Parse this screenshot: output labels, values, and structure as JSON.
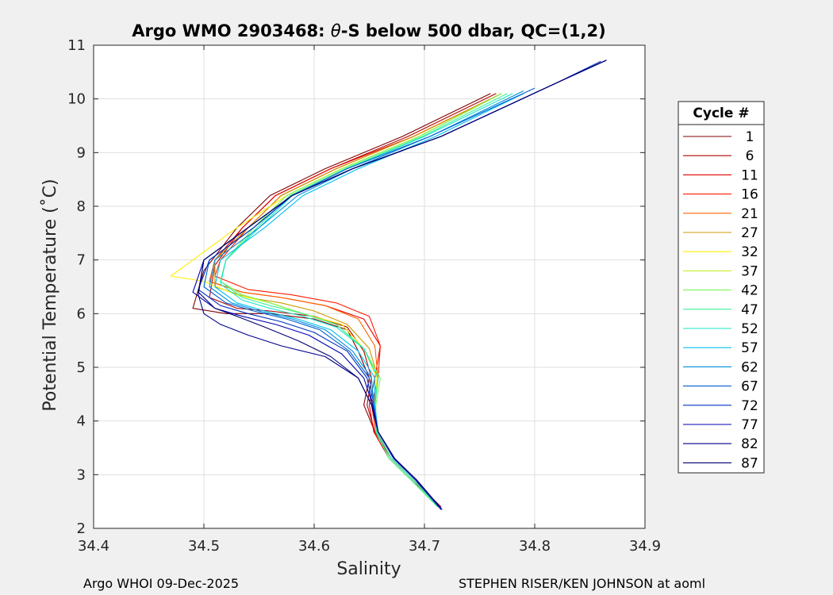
{
  "chart_data": {
    "type": "line",
    "title_prefix": "Argo WMO 2903468: ",
    "title_symbol": "θ",
    "title_suffix": "-S below 500 dbar,  QC=(1,2)",
    "xlabel": "Salinity",
    "ylabel": "Potential Temperature (˚C)",
    "xlim": [
      34.4,
      34.9
    ],
    "ylim": [
      2,
      11
    ],
    "xticks": [
      34.4,
      34.5,
      34.6,
      34.7,
      34.8,
      34.9
    ],
    "xtick_labels": [
      "34.4",
      "34.5",
      "34.6",
      "34.7",
      "34.8",
      "34.9"
    ],
    "yticks": [
      2,
      3,
      4,
      5,
      6,
      7,
      8,
      9,
      10,
      11
    ],
    "ytick_labels": [
      "2",
      "3",
      "4",
      "5",
      "6",
      "7",
      "8",
      "9",
      "10",
      "11"
    ],
    "grid": true,
    "legend_position": "right",
    "legend_title": "Cycle #",
    "legend_entries": [
      "1",
      "6",
      "11",
      "16",
      "21",
      "27",
      "32",
      "37",
      "42",
      "47",
      "52",
      "57",
      "62",
      "67",
      "72",
      "77",
      "82",
      "87"
    ],
    "legend_colors": [
      "#800000",
      "#b30000",
      "#e60000",
      "#ff1a00",
      "#ff6600",
      "#cc9900",
      "#ffee00",
      "#c8f028",
      "#7df55a",
      "#3cf096",
      "#19e6c8",
      "#00c0f0",
      "#0090e0",
      "#0060d0",
      "#0030c0",
      "#0000b0",
      "#000090",
      "#000070"
    ],
    "series": [
      {
        "name": "1",
        "color": "#800000",
        "S": [
          34.715,
          34.69,
          34.67,
          34.655,
          34.645,
          34.65,
          34.64,
          34.63,
          34.6,
          34.56,
          34.52,
          34.49,
          34.5,
          34.53,
          34.56,
          34.61,
          34.68,
          34.76
        ],
        "T": [
          2.4,
          2.9,
          3.3,
          3.8,
          4.3,
          4.8,
          5.3,
          5.7,
          5.9,
          6.0,
          6.0,
          6.1,
          6.8,
          7.6,
          8.2,
          8.7,
          9.3,
          10.1
        ]
      },
      {
        "name": "6",
        "color": "#b30000",
        "S": [
          34.715,
          34.69,
          34.67,
          34.655,
          34.648,
          34.652,
          34.645,
          34.63,
          34.6,
          34.56,
          34.53,
          34.505,
          34.51,
          34.535,
          34.565,
          34.615,
          34.685,
          34.765
        ],
        "T": [
          2.4,
          2.9,
          3.3,
          3.8,
          4.3,
          4.8,
          5.3,
          5.75,
          5.95,
          6.05,
          6.1,
          6.3,
          6.9,
          7.6,
          8.2,
          8.7,
          9.3,
          10.1
        ]
      },
      {
        "name": "11",
        "color": "#e60000",
        "S": [
          34.715,
          34.688,
          34.668,
          34.654,
          34.65,
          34.655,
          34.66,
          34.645,
          34.61,
          34.57,
          34.535,
          34.505,
          34.51,
          34.535,
          34.565,
          34.615,
          34.69,
          34.77
        ],
        "T": [
          2.4,
          2.9,
          3.3,
          3.8,
          4.3,
          4.8,
          5.4,
          5.9,
          6.15,
          6.3,
          6.4,
          6.6,
          7.0,
          7.6,
          8.2,
          8.7,
          9.3,
          10.1
        ]
      },
      {
        "name": "16",
        "color": "#ff1a00",
        "S": [
          34.714,
          34.69,
          34.67,
          34.656,
          34.652,
          34.658,
          34.66,
          34.65,
          34.62,
          34.58,
          34.54,
          34.51,
          34.515,
          34.54,
          34.57,
          34.62,
          34.69,
          34.77
        ],
        "T": [
          2.4,
          2.9,
          3.3,
          3.8,
          4.3,
          4.8,
          5.4,
          5.95,
          6.2,
          6.35,
          6.45,
          6.7,
          7.0,
          7.6,
          8.2,
          8.7,
          9.3,
          10.1
        ]
      },
      {
        "name": "21",
        "color": "#ff6600",
        "S": [
          34.714,
          34.69,
          34.67,
          34.657,
          34.653,
          34.658,
          34.655,
          34.64,
          34.61,
          34.57,
          34.535,
          34.505,
          34.51,
          34.54,
          34.57,
          34.62,
          34.69,
          34.77
        ],
        "T": [
          2.4,
          2.9,
          3.3,
          3.8,
          4.3,
          4.8,
          5.4,
          5.9,
          6.15,
          6.3,
          6.4,
          6.6,
          7.0,
          7.6,
          8.2,
          8.7,
          9.3,
          10.1
        ]
      },
      {
        "name": "27",
        "color": "#cc9900",
        "S": [
          34.713,
          34.69,
          34.67,
          34.657,
          34.654,
          34.658,
          34.65,
          34.63,
          34.6,
          34.57,
          34.54,
          34.51,
          34.51,
          34.54,
          34.57,
          34.62,
          34.69,
          34.77
        ],
        "T": [
          2.4,
          2.9,
          3.3,
          3.8,
          4.3,
          4.8,
          5.35,
          5.8,
          6.05,
          6.2,
          6.3,
          6.5,
          7.0,
          7.6,
          8.2,
          8.7,
          9.3,
          10.1
        ]
      },
      {
        "name": "32",
        "color": "#ffee00",
        "S": [
          34.712,
          34.69,
          34.67,
          34.657,
          34.655,
          34.657,
          34.645,
          34.625,
          34.59,
          34.56,
          34.53,
          34.5,
          34.47,
          34.49,
          34.53,
          34.575,
          34.625,
          34.695,
          34.77
        ],
        "T": [
          2.4,
          2.9,
          3.3,
          3.8,
          4.3,
          4.8,
          5.35,
          5.8,
          6.0,
          6.2,
          6.35,
          6.6,
          6.7,
          7.0,
          7.6,
          8.2,
          8.7,
          9.3,
          10.1
        ]
      },
      {
        "name": "37",
        "color": "#c8f028",
        "S": [
          34.712,
          34.688,
          34.668,
          34.656,
          34.655,
          34.658,
          34.645,
          34.62,
          34.59,
          34.56,
          34.535,
          34.515,
          34.52,
          34.545,
          34.575,
          34.625,
          34.695,
          34.77
        ],
        "T": [
          2.4,
          2.9,
          3.3,
          3.8,
          4.3,
          4.8,
          5.35,
          5.8,
          6.0,
          6.2,
          6.35,
          6.6,
          7.0,
          7.6,
          8.2,
          8.7,
          9.3,
          10.1
        ]
      },
      {
        "name": "42",
        "color": "#7df55a",
        "S": [
          34.712,
          34.688,
          34.668,
          34.656,
          34.656,
          34.66,
          34.645,
          34.62,
          34.59,
          34.56,
          34.535,
          34.515,
          34.52,
          34.545,
          34.575,
          34.625,
          34.695,
          34.77
        ],
        "T": [
          2.4,
          2.9,
          3.3,
          3.8,
          4.3,
          4.8,
          5.35,
          5.8,
          6.0,
          6.2,
          6.35,
          6.6,
          7.0,
          7.6,
          8.2,
          8.7,
          9.3,
          10.1
        ]
      },
      {
        "name": "47",
        "color": "#3cf096",
        "S": [
          34.712,
          34.688,
          34.668,
          34.656,
          34.655,
          34.658,
          34.645,
          34.62,
          34.59,
          34.56,
          34.535,
          34.515,
          34.52,
          34.548,
          34.578,
          34.628,
          34.698,
          34.775
        ],
        "T": [
          2.4,
          2.9,
          3.3,
          3.8,
          4.3,
          4.8,
          5.35,
          5.8,
          6.0,
          6.15,
          6.3,
          6.6,
          7.0,
          7.6,
          8.2,
          8.7,
          9.3,
          10.1
        ]
      },
      {
        "name": "52",
        "color": "#19e6c8",
        "S": [
          34.713,
          34.69,
          34.67,
          34.657,
          34.655,
          34.658,
          34.645,
          34.62,
          34.59,
          34.56,
          34.535,
          34.515,
          34.52,
          34.55,
          34.58,
          34.63,
          34.7,
          34.78
        ],
        "T": [
          2.4,
          2.9,
          3.3,
          3.8,
          4.3,
          4.8,
          5.35,
          5.75,
          5.95,
          6.1,
          6.25,
          6.55,
          7.0,
          7.6,
          8.2,
          8.7,
          9.3,
          10.1
        ]
      },
      {
        "name": "57",
        "color": "#00c0f0",
        "S": [
          34.714,
          34.692,
          34.672,
          34.658,
          34.655,
          34.655,
          34.64,
          34.615,
          34.585,
          34.555,
          34.53,
          34.51,
          34.515,
          34.555,
          34.59,
          34.64,
          34.71,
          34.79
        ],
        "T": [
          2.4,
          2.9,
          3.3,
          3.8,
          4.3,
          4.8,
          5.3,
          5.7,
          5.9,
          6.05,
          6.2,
          6.5,
          7.0,
          7.6,
          8.2,
          8.7,
          9.3,
          10.1
        ]
      },
      {
        "name": "62",
        "color": "#0090e0",
        "S": [
          34.714,
          34.692,
          34.672,
          34.658,
          34.654,
          34.652,
          34.635,
          34.61,
          34.58,
          34.55,
          34.525,
          34.505,
          34.51,
          34.55,
          34.585,
          34.635,
          34.705,
          34.79
        ],
        "T": [
          2.4,
          2.9,
          3.3,
          3.8,
          4.3,
          4.8,
          5.3,
          5.7,
          5.9,
          6.05,
          6.2,
          6.5,
          7.0,
          7.6,
          8.2,
          8.7,
          9.3,
          10.15
        ]
      },
      {
        "name": "67",
        "color": "#0060d0",
        "S": [
          34.715,
          34.692,
          34.672,
          34.658,
          34.654,
          34.65,
          34.632,
          34.605,
          34.575,
          34.545,
          34.52,
          34.5,
          34.505,
          34.545,
          34.58,
          34.63,
          34.705,
          34.8
        ],
        "T": [
          2.35,
          2.9,
          3.3,
          3.8,
          4.3,
          4.8,
          5.3,
          5.7,
          5.9,
          6.05,
          6.2,
          6.5,
          7.0,
          7.6,
          8.2,
          8.7,
          9.3,
          10.2
        ]
      },
      {
        "name": "72",
        "color": "#0030c0",
        "S": [
          34.715,
          34.692,
          34.672,
          34.658,
          34.653,
          34.648,
          34.63,
          34.6,
          34.57,
          34.54,
          34.515,
          34.495,
          34.505,
          34.545,
          34.58,
          34.635,
          34.715,
          34.82,
          34.86
        ],
        "T": [
          2.35,
          2.9,
          3.3,
          3.8,
          4.3,
          4.8,
          5.3,
          5.65,
          5.85,
          6.0,
          6.15,
          6.45,
          7.0,
          7.6,
          8.2,
          8.7,
          9.3,
          10.3,
          10.7
        ]
      },
      {
        "name": "77",
        "color": "#0000b0",
        "S": [
          34.716,
          34.693,
          34.673,
          34.658,
          34.653,
          34.645,
          34.625,
          34.595,
          34.565,
          34.535,
          34.51,
          34.49,
          34.5,
          34.54,
          34.58,
          34.635,
          34.715,
          34.82,
          34.865
        ],
        "T": [
          2.35,
          2.9,
          3.3,
          3.8,
          4.3,
          4.8,
          5.25,
          5.6,
          5.8,
          5.95,
          6.1,
          6.4,
          7.0,
          7.6,
          8.2,
          8.7,
          9.3,
          10.3,
          10.72
        ]
      },
      {
        "name": "82",
        "color": "#000090",
        "S": [
          34.716,
          34.693,
          34.673,
          34.658,
          34.652,
          34.64,
          34.61,
          34.57,
          34.54,
          34.515,
          34.5,
          34.495,
          34.5,
          34.54,
          34.58,
          34.635,
          34.715,
          34.82,
          34.865
        ],
        "T": [
          2.35,
          2.9,
          3.3,
          3.8,
          4.3,
          4.8,
          5.2,
          5.4,
          5.6,
          5.8,
          6.0,
          6.35,
          7.0,
          7.6,
          8.2,
          8.7,
          9.3,
          10.3,
          10.72
        ]
      },
      {
        "name": "87",
        "color": "#000070",
        "S": [
          34.716,
          34.693,
          34.673,
          34.658,
          34.652,
          34.64,
          34.615,
          34.585,
          34.555,
          34.53,
          34.51,
          34.495,
          34.5,
          34.54,
          34.58,
          34.635,
          34.715,
          34.82,
          34.865
        ],
        "T": [
          2.35,
          2.9,
          3.3,
          3.8,
          4.3,
          4.8,
          5.2,
          5.5,
          5.75,
          5.95,
          6.1,
          6.4,
          7.0,
          7.6,
          8.2,
          8.7,
          9.3,
          10.3,
          10.72
        ]
      }
    ]
  },
  "footer": {
    "left": "Argo WHOI 09-Dec-2025",
    "right": "STEPHEN RISER/KEN JOHNSON at aoml"
  }
}
